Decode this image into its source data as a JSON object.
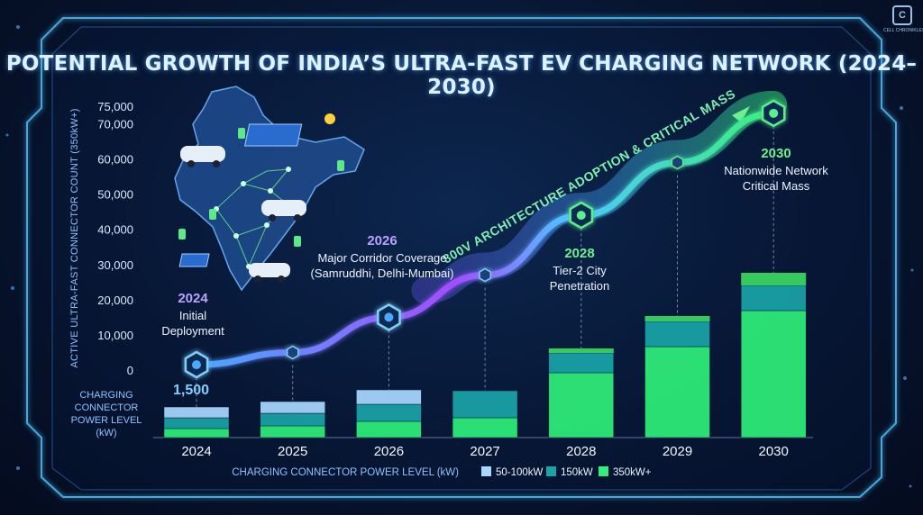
{
  "title": "POTENTIAL GROWTH OF INDIA’S ULTRA-FAST EV CHARGING NETWORK (2024–2030)",
  "logo_text": "CELL CHRONIKLES",
  "chart_data": {
    "type": "line+stacked-bar",
    "ylabel": "ACTIVE ULTRA-FAST CONNECTOR COUNT (350kW+)",
    "ylim": [
      0,
      75000
    ],
    "yticks": [
      "0",
      "10,000",
      "20,000",
      "30,000",
      "40,000",
      "50,000",
      "60,000",
      "70,000",
      "75,000"
    ],
    "ytick_values": [
      0,
      10000,
      20000,
      30000,
      40000,
      50000,
      60000,
      70000,
      75000
    ],
    "categories": [
      "2024",
      "2025",
      "2026",
      "2027",
      "2028",
      "2029",
      "2030"
    ],
    "line_series": {
      "name": "Active ultra-fast connectors",
      "values": [
        1500,
        5000,
        15000,
        27000,
        44000,
        59000,
        73000
      ],
      "highlighted_points": [
        0,
        2,
        4,
        6
      ]
    },
    "trend_label": "800V ARCHITECTURE ADOPTION & CRITICAL MASS",
    "annotations": [
      {
        "year": "2024",
        "lines": [
          "Initial",
          "Deployment"
        ]
      },
      {
        "year": "2026",
        "lines": [
          "Major Corridor Coverage",
          "(Samruddhi, Delhi-Mumbai)"
        ]
      },
      {
        "year": "2028",
        "lines": [
          "Tier-2 City",
          "Penetration"
        ]
      },
      {
        "year": "2030",
        "lines": [
          "Nationwide Network",
          "Critical Mass"
        ]
      }
    ],
    "first_value_label": "1,500",
    "bar_ylabel": [
      "CHARGING",
      "CONNECTOR",
      "POWER LEVEL",
      "(kW)"
    ],
    "xlabel": "CHARGING CONNECTOR POWER LEVEL (kW)",
    "bar_series": [
      {
        "name": "50-100kW",
        "color": "#a9d8ff",
        "values": [
          12,
          13,
          16,
          0,
          0,
          0,
          0
        ]
      },
      {
        "name": "150kW",
        "color": "#1aa3a8",
        "values": [
          12,
          14,
          19,
          30,
          22,
          28,
          28
        ]
      },
      {
        "name": "350kW+",
        "color": "#2ef07a",
        "values": [
          10,
          13,
          18,
          22,
          72,
          101,
          141
        ]
      }
    ],
    "bar_extra_top": [
      0,
      0,
      0,
      0,
      5,
      6,
      14
    ]
  }
}
